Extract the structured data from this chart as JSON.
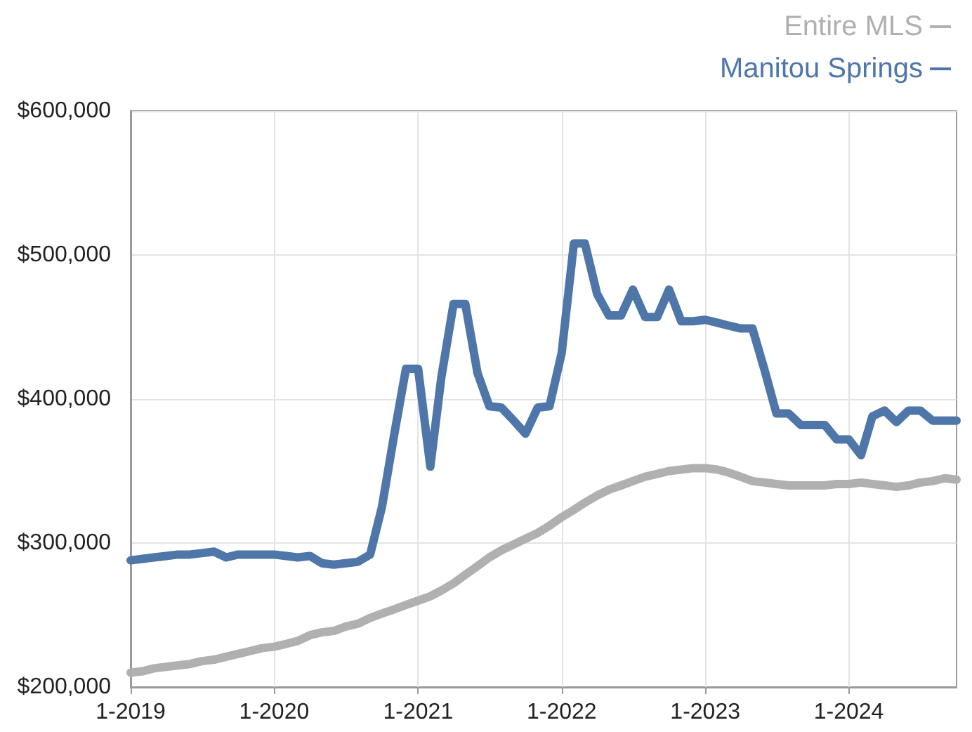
{
  "chart_data": {
    "type": "line",
    "x": [
      "2019-01",
      "2019-02",
      "2019-03",
      "2019-04",
      "2019-05",
      "2019-06",
      "2019-07",
      "2019-08",
      "2019-09",
      "2019-10",
      "2019-11",
      "2019-12",
      "2020-01",
      "2020-02",
      "2020-03",
      "2020-04",
      "2020-05",
      "2020-06",
      "2020-07",
      "2020-08",
      "2020-09",
      "2020-10",
      "2020-11",
      "2020-12",
      "2021-01",
      "2021-02",
      "2021-03",
      "2021-04",
      "2021-05",
      "2021-06",
      "2021-07",
      "2021-08",
      "2021-09",
      "2021-10",
      "2021-11",
      "2021-12",
      "2022-01",
      "2022-02",
      "2022-03",
      "2022-04",
      "2022-05",
      "2022-06",
      "2022-07",
      "2022-08",
      "2022-09",
      "2022-10",
      "2022-11",
      "2022-12",
      "2023-01",
      "2023-02",
      "2023-03",
      "2023-04",
      "2023-05",
      "2023-06",
      "2023-07",
      "2023-08",
      "2023-09",
      "2023-10",
      "2023-11",
      "2023-12",
      "2024-01",
      "2024-02",
      "2024-03",
      "2024-04",
      "2024-05",
      "2024-06",
      "2024-07",
      "2024-08",
      "2024-09",
      "2024-10"
    ],
    "series": [
      {
        "name": "Entire MLS",
        "color": "#b0b0b0",
        "values": [
          210000,
          211000,
          213000,
          214000,
          215000,
          216000,
          218000,
          219000,
          221000,
          223000,
          225000,
          227000,
          228000,
          230000,
          232000,
          236000,
          238000,
          239000,
          242000,
          244000,
          248000,
          251000,
          254000,
          257000,
          260000,
          263000,
          267000,
          272000,
          278000,
          284000,
          290000,
          295000,
          299000,
          303000,
          307000,
          312000,
          318000,
          323000,
          328000,
          333000,
          337000,
          340000,
          343000,
          346000,
          348000,
          350000,
          351000,
          352000,
          352000,
          351000,
          349000,
          346000,
          343000,
          342000,
          341000,
          340000,
          340000,
          340000,
          340000,
          341000,
          341000,
          342000,
          341000,
          340000,
          339000,
          340000,
          342000,
          343000,
          345000,
          344000
        ]
      },
      {
        "name": "Manitou Springs",
        "color": "#4e76a9",
        "values": [
          288000,
          289000,
          290000,
          291000,
          292000,
          292000,
          293000,
          294000,
          290000,
          292000,
          292000,
          292000,
          292000,
          291000,
          290000,
          291000,
          286000,
          285000,
          286000,
          287000,
          292000,
          325000,
          375000,
          421000,
          421000,
          353000,
          415000,
          466000,
          466000,
          418000,
          395000,
          394000,
          385000,
          376000,
          394000,
          395000,
          432000,
          508000,
          508000,
          473000,
          458000,
          458000,
          476000,
          457000,
          457000,
          476000,
          454000,
          454000,
          455000,
          453000,
          451000,
          449000,
          449000,
          420000,
          390000,
          390000,
          382000,
          382000,
          382000,
          372000,
          372000,
          361000,
          388000,
          392000,
          384000,
          392000,
          392000,
          385000,
          385000,
          385000
        ]
      }
    ],
    "xlim": [
      "2019-01",
      "2024-10"
    ],
    "xticks": [
      {
        "value": "2019-01",
        "label": "1-2019"
      },
      {
        "value": "2020-01",
        "label": "1-2020"
      },
      {
        "value": "2021-01",
        "label": "1-2021"
      },
      {
        "value": "2022-01",
        "label": "1-2022"
      },
      {
        "value": "2023-01",
        "label": "1-2023"
      },
      {
        "value": "2024-01",
        "label": "1-2024"
      }
    ],
    "ylim": [
      200000,
      600000
    ],
    "yticks": [
      {
        "value": 200000,
        "label": "$200,000"
      },
      {
        "value": 300000,
        "label": "$300,000"
      },
      {
        "value": 400000,
        "label": "$400,000"
      },
      {
        "value": 500000,
        "label": "$500,000"
      },
      {
        "value": 600000,
        "label": "$600,000"
      }
    ],
    "grid": true,
    "legend": "top right"
  }
}
